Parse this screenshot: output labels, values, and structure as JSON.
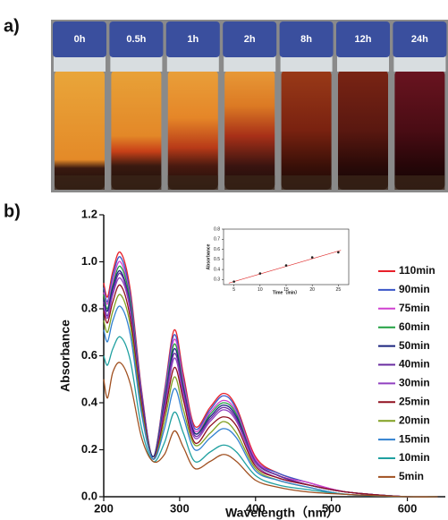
{
  "photos": {
    "label": "a)",
    "vials": [
      "0h",
      "0.5h",
      "1h",
      "2h",
      "8h",
      "12h",
      "24h"
    ]
  },
  "chart_panel_label": "b)",
  "chart_data": [
    {
      "type": "line",
      "xlabel": "Wavelength（nm）",
      "ylabel": "Absorbance",
      "x": [
        200,
        205,
        212,
        222,
        235,
        250,
        265,
        280,
        293,
        305,
        320,
        340,
        358,
        375,
        400,
        430,
        470,
        520,
        600,
        640
      ],
      "xlim": [
        200,
        650
      ],
      "xticks": [
        200,
        300,
        400,
        500,
        600
      ],
      "ylim": [
        0,
        1.2
      ],
      "yticks": [
        {
          "value": 0,
          "label": "0.0"
        },
        0.2,
        0.4,
        0.6,
        0.8,
        {
          "value": 1,
          "label": "1.0"
        },
        1.2
      ],
      "legend": "right",
      "series": [
        {
          "name": "110min",
          "color": "#e8202a",
          "values": [
            0.91,
            0.85,
            0.96,
            1.04,
            0.88,
            0.45,
            0.17,
            0.45,
            0.71,
            0.52,
            0.3,
            0.38,
            0.44,
            0.38,
            0.17,
            0.1,
            0.06,
            0.02,
            0,
            0
          ]
        },
        {
          "name": "90min",
          "color": "#3a55c8",
          "values": [
            0.89,
            0.83,
            0.94,
            1.02,
            0.86,
            0.44,
            0.17,
            0.44,
            0.69,
            0.5,
            0.29,
            0.37,
            0.43,
            0.37,
            0.16,
            0.1,
            0.06,
            0.02,
            0,
            0
          ]
        },
        {
          "name": "75min",
          "color": "#d040d0",
          "values": [
            0.87,
            0.82,
            0.92,
            1.0,
            0.84,
            0.43,
            0.17,
            0.42,
            0.67,
            0.49,
            0.28,
            0.36,
            0.41,
            0.36,
            0.16,
            0.09,
            0.06,
            0.02,
            0,
            0
          ]
        },
        {
          "name": "60min",
          "color": "#20a040",
          "values": [
            0.86,
            0.8,
            0.9,
            0.98,
            0.83,
            0.42,
            0.17,
            0.41,
            0.65,
            0.47,
            0.27,
            0.35,
            0.4,
            0.35,
            0.15,
            0.09,
            0.05,
            0.02,
            0,
            0
          ]
        },
        {
          "name": "50min",
          "color": "#1a237e",
          "values": [
            0.84,
            0.79,
            0.89,
            0.96,
            0.81,
            0.42,
            0.17,
            0.4,
            0.63,
            0.46,
            0.27,
            0.34,
            0.39,
            0.34,
            0.15,
            0.09,
            0.05,
            0.02,
            0,
            0
          ]
        },
        {
          "name": "40min",
          "color": "#6a2ca0",
          "values": [
            0.83,
            0.77,
            0.87,
            0.95,
            0.8,
            0.41,
            0.16,
            0.39,
            0.61,
            0.45,
            0.26,
            0.33,
            0.38,
            0.33,
            0.15,
            0.09,
            0.05,
            0.02,
            0,
            0
          ]
        },
        {
          "name": "30min",
          "color": "#9040c0",
          "values": [
            0.81,
            0.76,
            0.86,
            0.93,
            0.79,
            0.4,
            0.16,
            0.37,
            0.59,
            0.43,
            0.25,
            0.32,
            0.37,
            0.32,
            0.14,
            0.08,
            0.05,
            0.02,
            0,
            0
          ]
        },
        {
          "name": "25min",
          "color": "#901020",
          "values": [
            0.79,
            0.74,
            0.83,
            0.9,
            0.76,
            0.39,
            0.16,
            0.35,
            0.55,
            0.41,
            0.23,
            0.3,
            0.34,
            0.3,
            0.13,
            0.08,
            0.05,
            0.02,
            0,
            0
          ]
        },
        {
          "name": "20min",
          "color": "#80a020",
          "values": [
            0.75,
            0.7,
            0.79,
            0.86,
            0.73,
            0.37,
            0.16,
            0.32,
            0.51,
            0.37,
            0.22,
            0.27,
            0.32,
            0.27,
            0.12,
            0.07,
            0.04,
            0.01,
            0,
            0
          ]
        },
        {
          "name": "15min",
          "color": "#3080d0",
          "values": [
            0.71,
            0.66,
            0.75,
            0.81,
            0.69,
            0.35,
            0.16,
            0.29,
            0.46,
            0.34,
            0.2,
            0.25,
            0.29,
            0.25,
            0.11,
            0.07,
            0.04,
            0.01,
            0,
            0
          ]
        },
        {
          "name": "10min",
          "color": "#20a0a0",
          "values": [
            0.6,
            0.56,
            0.63,
            0.68,
            0.58,
            0.29,
            0.15,
            0.23,
            0.36,
            0.27,
            0.15,
            0.19,
            0.22,
            0.19,
            0.09,
            0.05,
            0.03,
            0.01,
            0,
            0
          ]
        },
        {
          "name": "5min",
          "color": "#a05020",
          "values": [
            0.5,
            0.42,
            0.53,
            0.57,
            0.48,
            0.25,
            0.15,
            0.18,
            0.28,
            0.21,
            0.12,
            0.15,
            0.18,
            0.15,
            0.07,
            0.04,
            0.02,
            0.01,
            0,
            0
          ]
        }
      ]
    },
    {
      "type": "scatter",
      "xlabel": "Time（min）",
      "ylabel": "Absorbance",
      "x": [
        5,
        10,
        15,
        20,
        25
      ],
      "values": [
        0.28,
        0.36,
        0.44,
        0.52,
        0.57
      ],
      "color": "#222222",
      "fit": {
        "x": [
          4,
          25.5
        ],
        "values": [
          0.265,
          0.59
        ],
        "color": "#e03030"
      },
      "xlim": [
        3,
        27
      ],
      "xticks": [
        5,
        10,
        15,
        20,
        25
      ],
      "ylim": [
        0.25,
        0.8
      ],
      "yticks": [
        0.3,
        0.4,
        0.5,
        0.6,
        0.7,
        0.8
      ]
    }
  ]
}
